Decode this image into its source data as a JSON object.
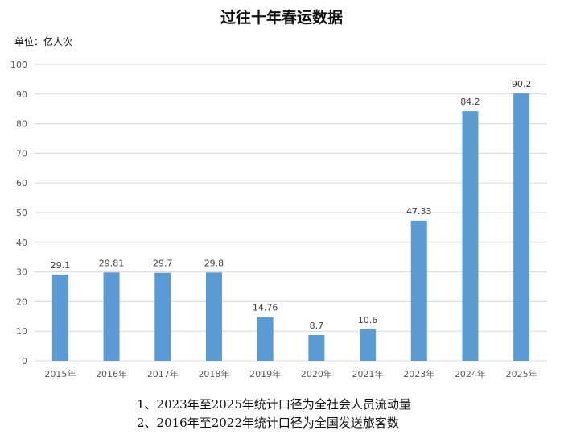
{
  "chart_data": {
    "type": "bar",
    "title": "过往十年春运数据",
    "unit_label": "单位：亿人次",
    "categories": [
      "2015年",
      "2016年",
      "2017年",
      "2018年",
      "2019年",
      "2020年",
      "2021年",
      "2023年",
      "2024年",
      "2025年"
    ],
    "values": [
      29.1,
      29.81,
      29.7,
      29.8,
      14.76,
      8.7,
      10.6,
      47.33,
      84.2,
      90.2
    ],
    "data_labels": [
      "29.1",
      "29.81",
      "29.7",
      "29.8",
      "14.76",
      "8.7",
      "10.6",
      "47.33",
      "84.2",
      "90.2"
    ],
    "ylim": [
      0,
      100
    ],
    "yticks": [
      0,
      10,
      20,
      30,
      40,
      50,
      60,
      70,
      80,
      90,
      100
    ],
    "grid": true,
    "bar_color": "#5b9bd5",
    "grid_color": "#d9d9d9",
    "notes": [
      "1、2023年至2025年统计口径为全社会人员流动量",
      "2、2016年至2022年统计口径为全国发送旅客数"
    ]
  }
}
